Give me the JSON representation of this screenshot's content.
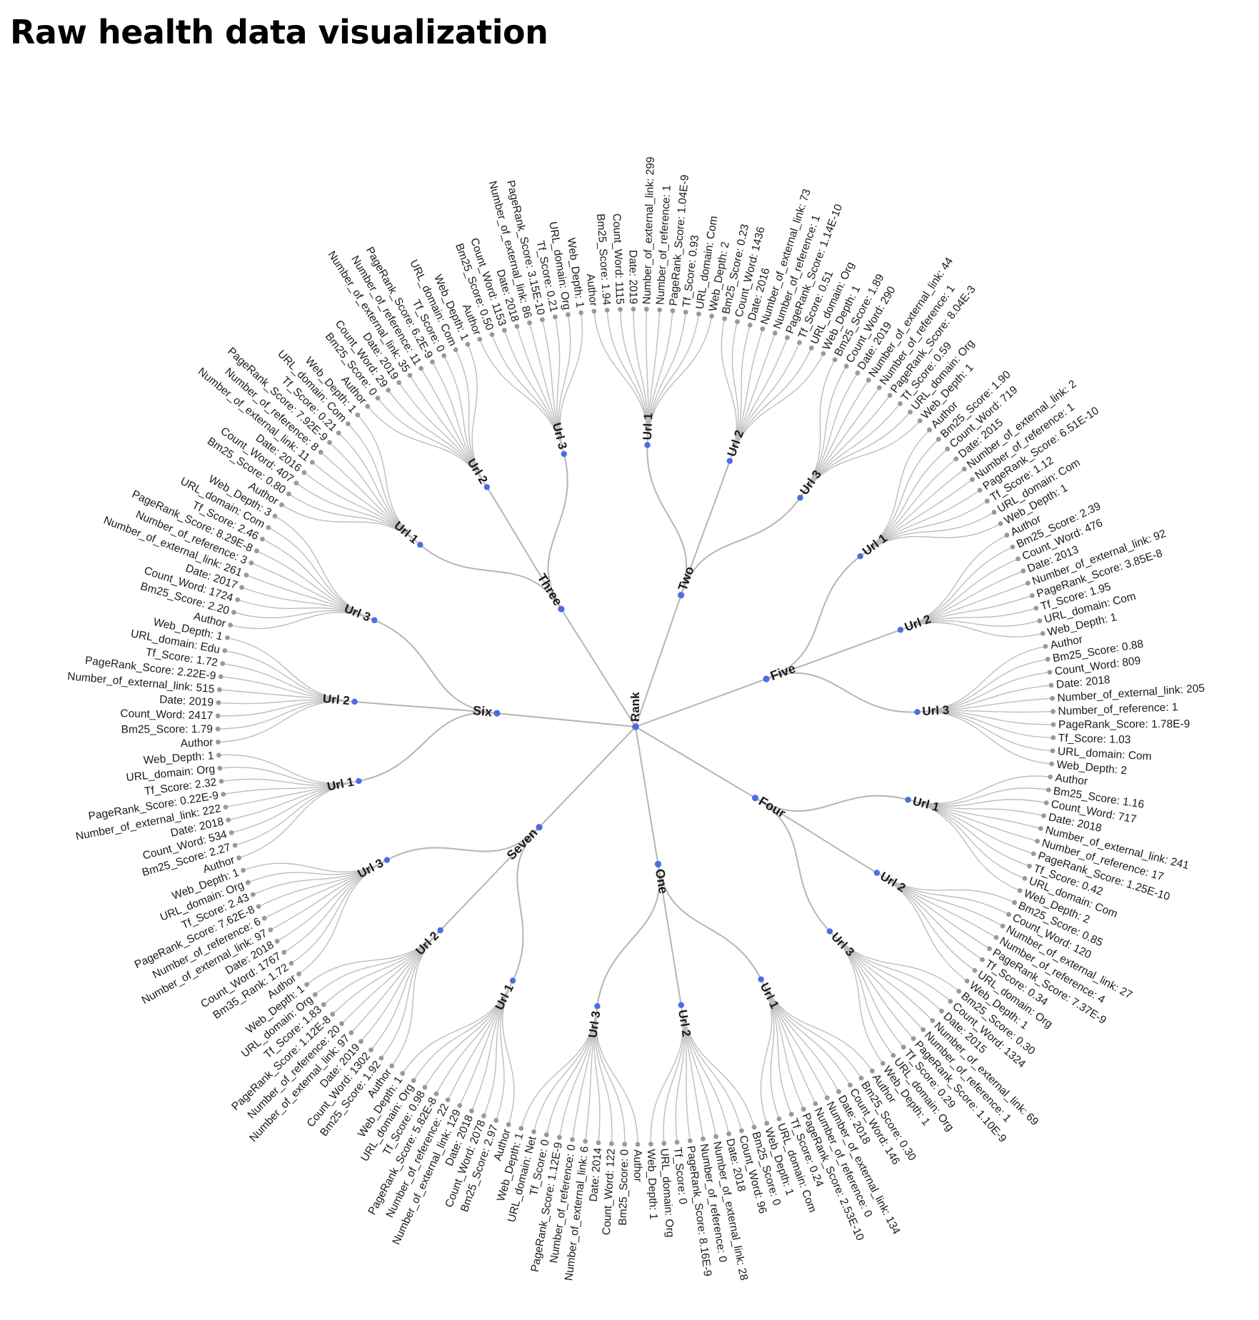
{
  "title": "Raw health data visualization",
  "colors": {
    "node": "#4a6ee0",
    "leaf": "#999999",
    "link": "#b5b5b5",
    "text": "#1a1a1a"
  },
  "root": "Rank",
  "groups": [
    {
      "name": "Four",
      "urls": [
        {
          "name": "Url 1",
          "leaves": [
            "Author",
            "Bm25_Score: 1.16",
            "Count_Word: 717",
            "Date: 2018",
            "Number_of_external_link: 241",
            "Number_of_reference: 17",
            "PageRank_Score: 1.25E-10",
            "Tf_Score: 0.42",
            "URL_domain: Com",
            "Web_Depth: 2"
          ]
        },
        {
          "name": "Url 2",
          "leaves": [
            "Bm25_Score: 0.85",
            "Count_Word: 120",
            "Number_of_external_link: 27",
            "Number_of_reference: 4",
            "PageRank_Score: 7.37E-9",
            "Tf_Score: 0.34",
            "URL_domain: Org",
            "Web_Depth: 1"
          ]
        },
        {
          "name": "Url 3",
          "leaves": [
            "Bm25_Score: 0.30",
            "Count_Word: 1324",
            "Date: 2015",
            "Number_of_external_link: 69",
            "Number_of_reference: 1",
            "PageRank_Score: 1.10E-9",
            "Tf_Score: 0.29",
            "URL_domain: Org",
            "Web_Depth: 1"
          ]
        }
      ]
    },
    {
      "name": "One",
      "urls": [
        {
          "name": "Url 1",
          "leaves": [
            "Author",
            "Bm25_Score: 0.30",
            "Count_Word: 146",
            "Date: 2018",
            "Number_of_external_link: 134",
            "Number_of_reference: 0",
            "PageRank_Score: 2.53E-10",
            "Tf_Score: 0.24",
            "URL_domain: Com",
            "Web_Depth: 1"
          ]
        },
        {
          "name": "Url 2",
          "leaves": [
            "Bm25_Score: 0",
            "Count_Word: 96",
            "Date: 2018",
            "Number_of_external_link: 28",
            "Number_of_reference: 0",
            "PageRank_Score: 8.16E-9",
            "Tf_Score: 0",
            "URL_domain: Org",
            "Web_Depth: 1"
          ]
        },
        {
          "name": "Url 3",
          "leaves": [
            "Author",
            "Bm25_Score: 0",
            "Count_Word: 122",
            "Date: 2014",
            "Number_of_external_link: 6",
            "Number_of_reference: 0",
            "PageRank_Score: 1.12E-9",
            "Tf_Score: 0",
            "URL_domain: Net",
            "Web_Depth: 1"
          ]
        }
      ]
    },
    {
      "name": "Seven",
      "urls": [
        {
          "name": "Url 1",
          "leaves": [
            "Author",
            "Bm25_Score: 2.97",
            "Count_Word: 2078",
            "Date: 2018",
            "Number_of_external_link: 129",
            "Number_of_reference: 22",
            "PageRank_Score: 5.82E-8",
            "Tf_Score: 0.98",
            "URL_domain: Org",
            "Web_Depth: 1"
          ]
        },
        {
          "name": "Url 2",
          "leaves": [
            "Author",
            "Bm25_Score: 1.92",
            "Count_Word: 1302",
            "Date: 2019",
            "Number_of_external_link: 97",
            "Number_of_reference: 20",
            "PageRank_Score: 1.12E-8",
            "Tf_Score: 1.83",
            "URL_domain: Org",
            "Web_Depth: 1"
          ]
        },
        {
          "name": "Url 3",
          "leaves": [
            "Author",
            "Bm35_Rank: 1.72",
            "Count_Word: 1767",
            "Date: 2018",
            "Number_of_external_link: 97",
            "Number_of_reference: 6",
            "PageRank_Score: 7.62E-8",
            "Tf_Score: 2.43",
            "URL_domain: Org",
            "Web_Depth: 1"
          ]
        }
      ]
    },
    {
      "name": "Six",
      "urls": [
        {
          "name": "Url 1",
          "leaves": [
            "Author",
            "Bm25_Score: 2.27",
            "Count_Word: 534",
            "Date: 2018",
            "Number_of_external_link: 222",
            "PageRank_Score: 0.22E-9",
            "Tf_Score: 2.32",
            "URL_domain: Org",
            "Web_Depth: 1"
          ]
        },
        {
          "name": "Url 2",
          "leaves": [
            "Author",
            "Bm25_Score: 1.79",
            "Count_Word: 2417",
            "Date: 2019",
            "Number_of_external_link: 515",
            "PageRank_Score: 2.22E-9",
            "Tf_Score: 1.72",
            "URL_domain: Edu",
            "Web_Depth: 1"
          ]
        },
        {
          "name": "Url 3",
          "leaves": [
            "Author",
            "Bm25_Score: 2.20",
            "Count_Word: 1724",
            "Date: 2017",
            "Number_of_external_link: 261",
            "Number_of_reference: 3",
            "PageRank_Score: 8.29E-8",
            "Tf_Score: 2.46",
            "URL_domain: Com",
            "Web_Depth: 3"
          ]
        }
      ]
    },
    {
      "name": "Three",
      "urls": [
        {
          "name": "Url 1",
          "leaves": [
            "Author",
            "Bm25_Score: 0.80",
            "Count_Word: 407",
            "Date: 2016",
            "Number_of_external_link: 11",
            "Number_of_reference: 8",
            "PageRank_Score: 7.92E-9",
            "Tf_Score: 0.21",
            "URL_domain: Com",
            "Web_Depth: 1"
          ]
        },
        {
          "name": "Url 2",
          "leaves": [
            "Author",
            "Bm25_Score: 0",
            "Count_Word: 29",
            "Date: 2019",
            "Number_of_external_link: 35",
            "Number_of_reference: 11",
            "PageRank_Score: 6.2E-9",
            "Tf_Score: 0",
            "URL_domain: Com",
            "Web_Depth: 1"
          ]
        },
        {
          "name": "Url 3",
          "leaves": [
            "Author",
            "Bm25_Score: 0.50",
            "Count_Word: 1153",
            "Date: 2018",
            "Number_of_external_link: 86",
            "PageRank_Score: 3.15E-10",
            "Tf_Score: 0.21",
            "URL_domain: Org",
            "Web_Depth: 1"
          ]
        }
      ]
    },
    {
      "name": "Two",
      "urls": [
        {
          "name": "Url 1",
          "leaves": [
            "Author",
            "Bm25_Score: 1.94",
            "Count_Word: 1115",
            "Date: 2019",
            "Number_of_external_link: 299",
            "Number_of_reference: 1",
            "PageRank_Score: 1.04E-9",
            "Tf_Score: 0.93",
            "URL_domain: Com",
            "Web_Depth: 2"
          ]
        },
        {
          "name": "Url 2",
          "leaves": [
            "Bm25_Score: 0.23",
            "Count_Word: 1436",
            "Date: 2016",
            "Number_of_external_link: 73",
            "Number_of_reference: 1",
            "PageRank_Score: 1.14E-10",
            "Tf_Score: 0.51",
            "URL_domain: Org",
            "Web_Depth: 1"
          ]
        },
        {
          "name": "Url 3",
          "leaves": [
            "Bm25_Score: 1.89",
            "Count_Word: 290",
            "Date: 2019",
            "Number_of_external_link: 44",
            "Number_of_reference: 1",
            "PageRank_Score: 8.04E-3",
            "Tf_Score: 0.59",
            "URL_domain: Org",
            "Web_Depth: 1"
          ]
        }
      ]
    },
    {
      "name": "Five",
      "urls": [
        {
          "name": "Url 1",
          "leaves": [
            "Author",
            "Bm25_Score: 1.90",
            "Count_Word: 719",
            "Date: 2015",
            "Number_of_external_link: 2",
            "Number_of_reference: 1",
            "PageRank_Score: 6.51E-10",
            "Tf_Score: 1.12",
            "URL_domain: Com",
            "Web_Depth: 1"
          ]
        },
        {
          "name": "Url 2",
          "leaves": [
            "Author",
            "Bm25_Score: 2.39",
            "Count_Word: 476",
            "Date: 2013",
            "Number_of_external_link: 92",
            "PageRank_Score: 3.85E-8",
            "Tf_Score: 1.95",
            "URL_domain: Com",
            "Web_Depth: 1"
          ]
        },
        {
          "name": "Url 3",
          "leaves": [
            "Author",
            "Bm25_Score: 0.88",
            "Count_Word: 809",
            "Date: 2018",
            "Number_of_external_link: 205",
            "Number_of_reference: 1",
            "PageRank_Score: 1.78E-9",
            "Tf_Score: 1.03",
            "URL_domain: Com",
            "Web_Depth: 2"
          ]
        }
      ]
    }
  ]
}
